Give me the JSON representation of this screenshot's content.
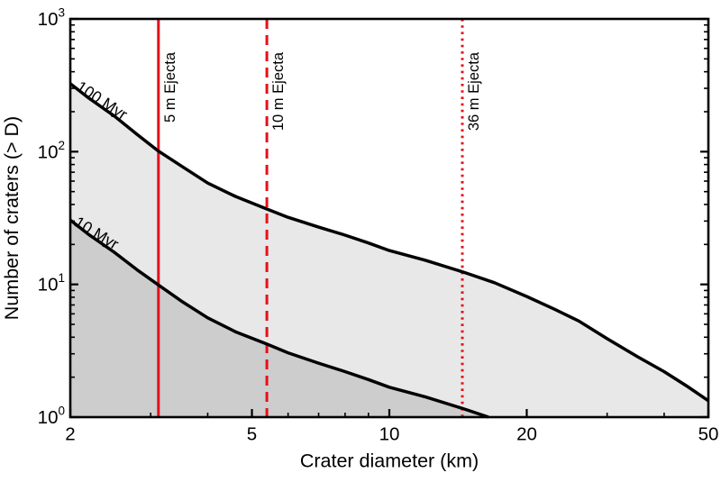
{
  "page": {
    "background": "#ffffff"
  },
  "chart_data": {
    "type": "line",
    "title": "",
    "x_scale": "log",
    "y_scale": "log",
    "grid": false,
    "legend": "inline-labels",
    "axes": {
      "x": {
        "label": "Crater diameter (km)",
        "min": 2,
        "max": 50,
        "major_ticks": [
          2,
          5,
          10,
          20,
          50
        ],
        "minor_ticks": [
          3,
          4,
          6,
          7,
          8,
          9,
          30,
          40
        ]
      },
      "y": {
        "label": "Number of craters (> D)",
        "min": 1,
        "max": 1000,
        "major_tick_exponents": [
          0,
          1,
          2,
          3
        ],
        "tick_base": "10"
      }
    },
    "series": [
      {
        "name": "100 Myr",
        "fill": "#e8e8e8",
        "label_anchor": {
          "d": 2.05,
          "n": 295,
          "angle": 33
        },
        "points": [
          [
            2,
            325
          ],
          [
            2.2,
            252
          ],
          [
            2.5,
            185
          ],
          [
            2.8,
            135
          ],
          [
            3.12,
            101
          ],
          [
            3.5,
            78
          ],
          [
            4,
            58
          ],
          [
            4.6,
            46
          ],
          [
            5.39,
            37
          ],
          [
            6,
            32
          ],
          [
            7,
            27
          ],
          [
            8,
            23.5
          ],
          [
            9,
            20.5
          ],
          [
            10,
            18
          ],
          [
            12,
            15.2
          ],
          [
            14.5,
            12.4
          ],
          [
            17,
            10.3
          ],
          [
            20,
            8.1
          ],
          [
            23,
            6.5
          ],
          [
            26,
            5.3
          ],
          [
            30,
            3.9
          ],
          [
            35,
            2.85
          ],
          [
            40,
            2.2
          ],
          [
            45,
            1.7
          ],
          [
            50,
            1.33
          ]
        ]
      },
      {
        "name": "10 Myr",
        "fill": "#cdcdcd",
        "label_anchor": {
          "d": 2.03,
          "n": 28,
          "angle": 31
        },
        "points": [
          [
            2,
            30.5
          ],
          [
            2.2,
            23.6
          ],
          [
            2.5,
            17.4
          ],
          [
            2.8,
            12.9
          ],
          [
            3.12,
            9.9
          ],
          [
            3.5,
            7.5
          ],
          [
            4,
            5.6
          ],
          [
            4.6,
            4.4
          ],
          [
            5.39,
            3.55
          ],
          [
            6,
            3.05
          ],
          [
            7,
            2.55
          ],
          [
            8,
            2.2
          ],
          [
            9,
            1.92
          ],
          [
            10,
            1.68
          ],
          [
            12,
            1.42
          ],
          [
            14.5,
            1.16
          ],
          [
            16.5,
            1.0
          ]
        ]
      }
    ],
    "vlines": [
      {
        "label": "5 m Ejecta",
        "d": 3.12,
        "style": "solid"
      },
      {
        "label": "10 m Ejecta",
        "d": 5.39,
        "style": "dashed"
      },
      {
        "label": "36 m Ejecta",
        "d": 14.45,
        "style": "dotted"
      }
    ],
    "colors": {
      "curve": "#000000",
      "vline": "#e31119",
      "axis": "#000000",
      "text": "#000000",
      "fill_between_curves": "#e8e8e8",
      "fill_below_lower_curve": "#cdcdcd"
    }
  }
}
